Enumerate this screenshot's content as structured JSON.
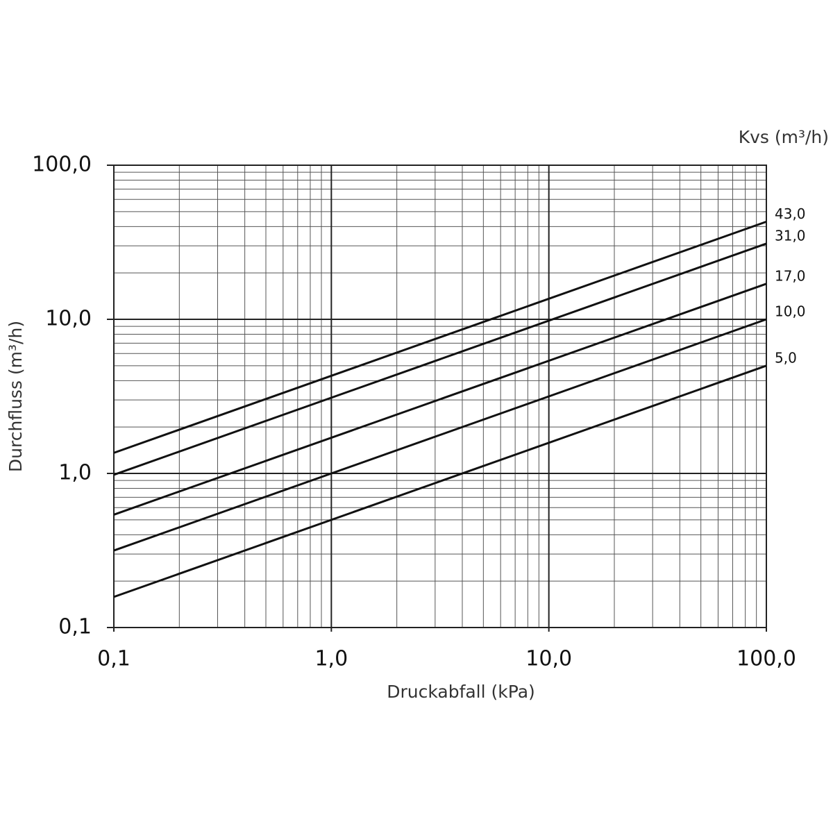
{
  "chart_data": {
    "type": "line",
    "xlabel": "Druckabfall (kPa)",
    "ylabel": "Durchfluss (m³/h)",
    "legend_title": "Kvs (m³/h)",
    "xscale": "log",
    "yscale": "log",
    "grid": true,
    "x": [
      0.1,
      100
    ],
    "series": [
      {
        "name": "43,0",
        "color": "#111111",
        "values": [
          1.36,
          43
        ]
      },
      {
        "name": "31,0",
        "color": "#111111",
        "values": [
          0.98,
          31
        ]
      },
      {
        "name": "17,0",
        "color": "#111111",
        "values": [
          0.54,
          17
        ]
      },
      {
        "name": "10,0",
        "color": "#111111",
        "values": [
          0.316,
          10
        ]
      },
      {
        "name": "5,0",
        "color": "#111111",
        "values": [
          0.158,
          5
        ]
      }
    ],
    "xlim": [
      0.1,
      100
    ],
    "ylim": [
      0.1,
      100
    ],
    "xticks": [
      {
        "value": 0.1,
        "label": "0,1"
      },
      {
        "value": 1,
        "label": "1,0"
      },
      {
        "value": 10,
        "label": "10,0"
      },
      {
        "value": 100,
        "label": "100,0"
      }
    ],
    "yticks": [
      {
        "value": 0.1,
        "label": "0,1"
      },
      {
        "value": 1,
        "label": "1,0"
      },
      {
        "value": 10,
        "label": "10,0"
      },
      {
        "value": 100,
        "label": "100,0"
      }
    ],
    "x_minor_ticks": [
      0.2,
      0.3,
      0.4,
      0.5,
      0.6,
      0.7,
      0.8,
      0.9,
      2,
      3,
      4,
      5,
      6,
      7,
      8,
      9,
      20,
      30,
      40,
      50,
      60,
      70,
      80,
      90
    ],
    "y_minor_ticks": [
      0.2,
      0.3,
      0.4,
      0.5,
      0.6,
      0.7,
      0.8,
      0.9,
      2,
      3,
      4,
      5,
      6,
      7,
      8,
      9,
      20,
      30,
      40,
      50,
      60,
      70,
      80,
      90
    ]
  }
}
